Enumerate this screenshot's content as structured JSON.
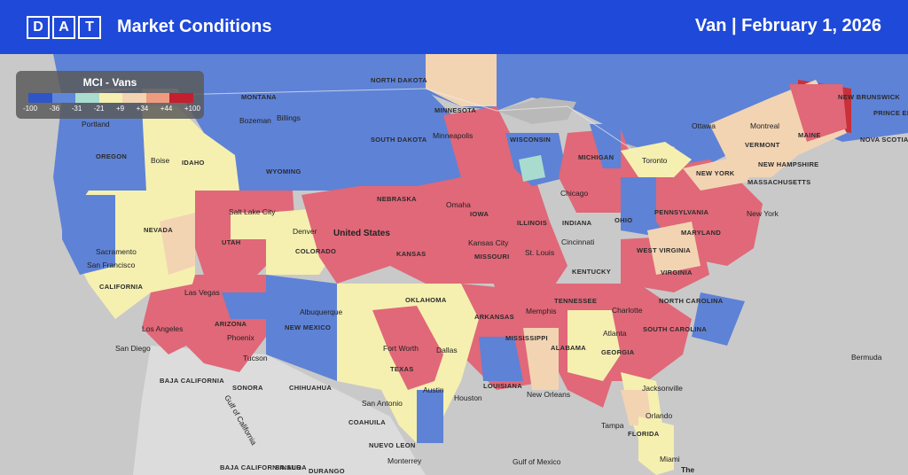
{
  "header": {
    "logo_letters": [
      "D",
      "A",
      "T"
    ],
    "title": "Market Conditions",
    "right_text": "Van | February 1, 2026"
  },
  "legend": {
    "title": "MCI - Vans",
    "ticks": [
      "-100",
      "-36",
      "-31",
      "-21",
      "+9",
      "+34",
      "+44",
      "+100"
    ],
    "colors": [
      "#2f55c9",
      "#5f86d8",
      "#a9dccf",
      "#f5f0b0",
      "#f2d3b2",
      "#ef9b80",
      "#c31f2f"
    ]
  },
  "map": {
    "country_label": "United States",
    "states": [
      "MONTANA",
      "NORTH DAKOTA",
      "MINNESOTA",
      "SOUTH DAKOTA",
      "WYOMING",
      "IDAHO",
      "OREGON",
      "NEVADA",
      "UTAH",
      "COLORADO",
      "NEBRASKA",
      "IOWA",
      "KANSAS",
      "MISSOURI",
      "ILLINOIS",
      "INDIANA",
      "OHIO",
      "WISCONSIN",
      "MICHIGAN",
      "NEW YORK",
      "PENNSYLVANIA",
      "WEST VIRGINIA",
      "VIRGINIA",
      "KENTUCKY",
      "TENNESSEE",
      "NORTH CAROLINA",
      "SOUTH CAROLINA",
      "GEORGIA",
      "ALABAMA",
      "MISSISSIPPI",
      "ARKANSAS",
      "LOUISIANA",
      "TEXAS",
      "OKLAHOMA",
      "NEW MEXICO",
      "ARIZONA",
      "CALIFORNIA",
      "FLORIDA",
      "MAINE",
      "VERMONT",
      "NEW HAMPSHIRE",
      "MASSACHUSETTS",
      "MARYLAND",
      "NEW BRUNSWICK",
      "NOVA SCOTIA",
      "PRINCE EDWARD ISLAND",
      "BAJA CALIFORNIA",
      "BAJA CALIFORNIA SUR",
      "SONORA",
      "CHIHUAHUA",
      "COAHUILA",
      "NUEVO LEON",
      "SINALOA",
      "DURANGO"
    ],
    "cities": [
      "Portland",
      "Bozeman",
      "Billings",
      "Boise",
      "Salt Lake City",
      "Sacramento",
      "San Francisco",
      "Las Vegas",
      "Los Angeles",
      "San Diego",
      "Phoenix",
      "Tucson",
      "Albuquerque",
      "Denver",
      "Omaha",
      "Minneapolis",
      "Kansas City",
      "St. Louis",
      "Chicago",
      "Cincinnati",
      "Memphis",
      "Dallas",
      "Fort Worth",
      "Austin",
      "Houston",
      "San Antonio",
      "New Orleans",
      "Atlanta",
      "Charlotte",
      "Jacksonville",
      "Orlando",
      "Tampa",
      "Miami",
      "New York",
      "Toronto",
      "Ottawa",
      "Montreal",
      "Monterrey",
      "Bermuda",
      "Gulf of Mexico",
      "Gulf of California",
      "The"
    ]
  }
}
